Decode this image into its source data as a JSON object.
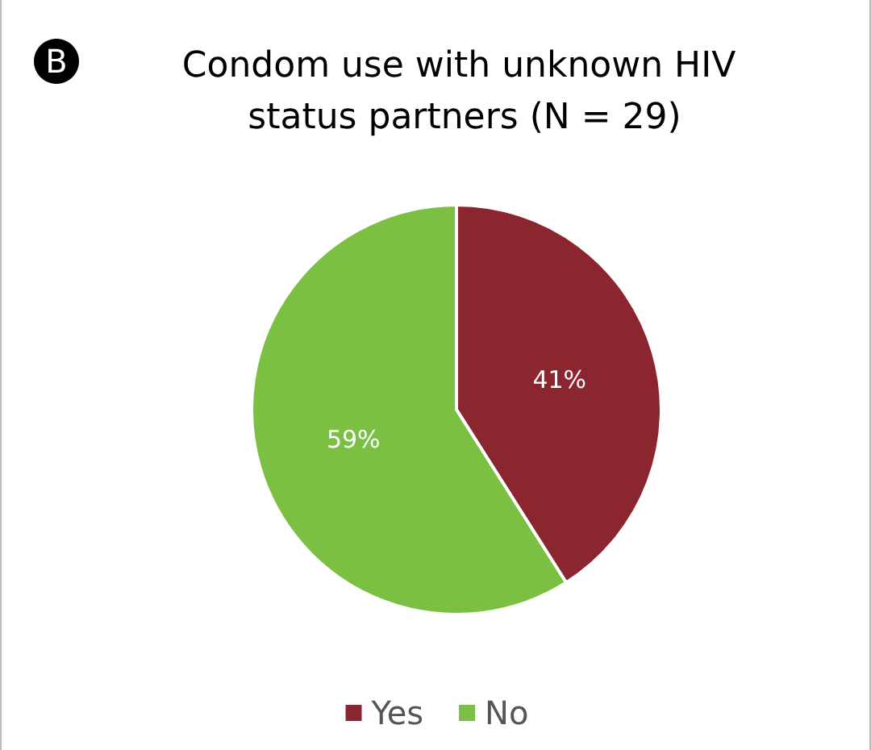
{
  "chart_data": {
    "type": "pie",
    "title": "Condom use with unknown HIV status partners (N = 29)",
    "annotations": [
      "B"
    ],
    "categories": [
      "Yes",
      "No"
    ],
    "values": [
      41,
      59
    ],
    "colors": [
      "#8b2530",
      "#7bbf43"
    ],
    "value_labels": [
      "41%",
      "59%"
    ],
    "legend": "bottom"
  }
}
